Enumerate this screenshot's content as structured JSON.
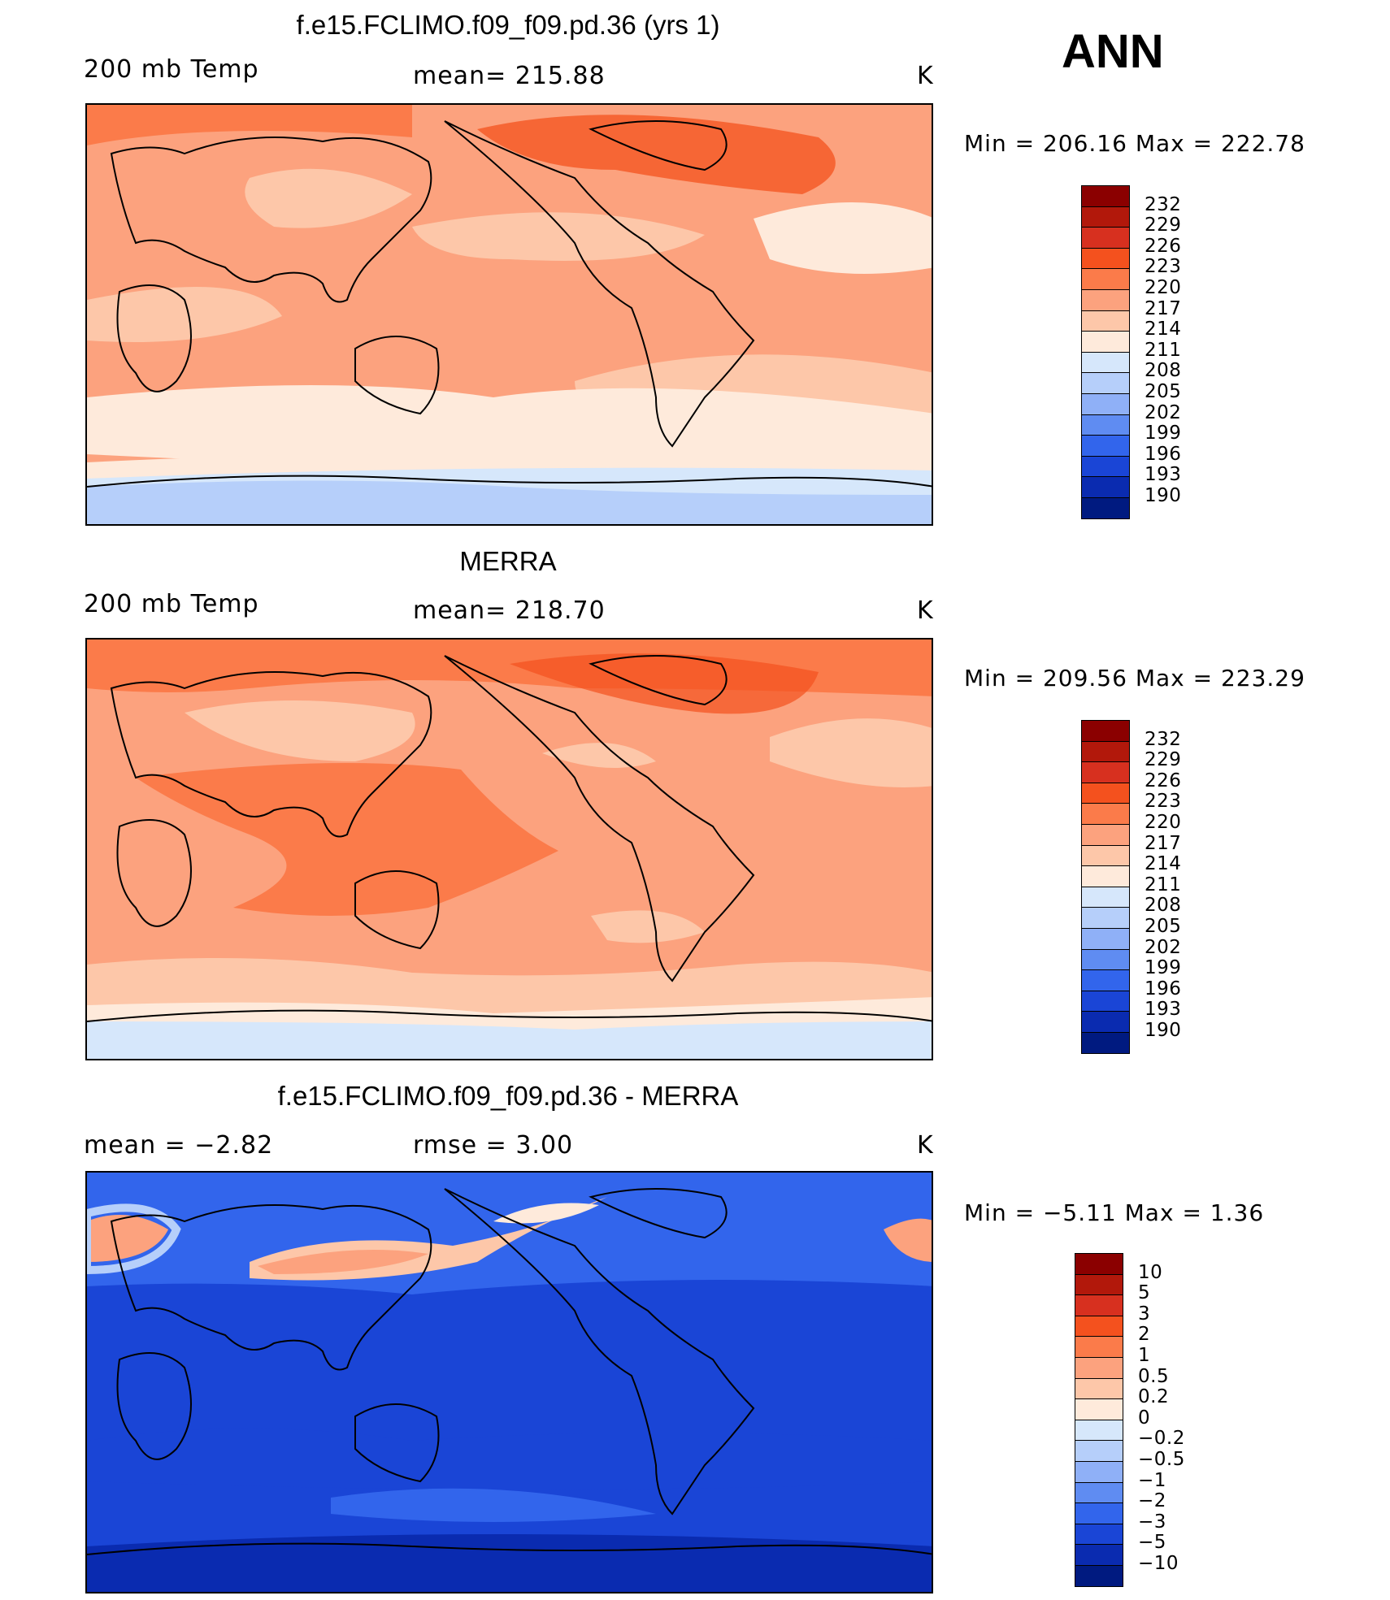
{
  "header": {
    "season": "ANN"
  },
  "panels": [
    {
      "title": "f.e15.FCLIMO.f09_f09.pd.36 (yrs 1)",
      "left_label": "200 mb Temp",
      "center_label": "mean= 215.88",
      "units": "K",
      "minmax": "Min = 206.16 Max = 222.78",
      "field_levels": {
        "base": "#fcae91",
        "blobs": [
          {
            "c": "#fc8d59",
            "note": "warm"
          },
          {
            "c": "#fdd0b4",
            "note": "cool"
          }
        ]
      }
    },
    {
      "title": "MERRA",
      "left_label": "200 mb Temp",
      "center_label": "mean= 218.70",
      "units": "K",
      "minmax": "Min = 209.56 Max = 223.29"
    },
    {
      "title": "f.e15.FCLIMO.f09_f09.pd.36 - MERRA",
      "left_label": "mean =    −2.82",
      "center_label": "rmse =     3.00",
      "units": "K",
      "minmax": "Min =   −5.11 Max =     1.36"
    }
  ],
  "colorbars": {
    "abs": {
      "labels": [
        "232",
        "229",
        "226",
        "223",
        "220",
        "217",
        "214",
        "211",
        "208",
        "205",
        "202",
        "199",
        "196",
        "193",
        "190"
      ],
      "colors": [
        "#8b0000",
        "#b2180b",
        "#d7301f",
        "#f4511e",
        "#fb7b4a",
        "#fca27e",
        "#fdc7a9",
        "#feeadb",
        "#d6e7fb",
        "#b6cffa",
        "#8fb0f7",
        "#5f8cf2",
        "#3265ec",
        "#1a45d6",
        "#0a2bb0",
        "#001a80"
      ]
    },
    "diff": {
      "labels": [
        "10",
        "5",
        "3",
        "2",
        "1",
        "0.5",
        "0.2",
        "0",
        "−0.2",
        "−0.5",
        "−1",
        "−2",
        "−3",
        "−5",
        "−10"
      ],
      "colors": [
        "#8b0000",
        "#b2180b",
        "#d7301f",
        "#f4511e",
        "#fb7b4a",
        "#fca27e",
        "#fdc7a9",
        "#feeadb",
        "#d6e7fb",
        "#b6cffa",
        "#8fb0f7",
        "#5f8cf2",
        "#3265ec",
        "#1a45d6",
        "#0a2bb0",
        "#001a80"
      ]
    }
  }
}
